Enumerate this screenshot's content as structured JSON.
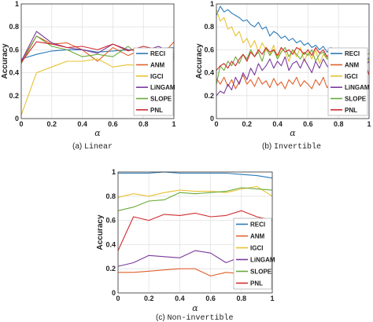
{
  "colors": {
    "RECI": "#2a7ab8",
    "ANM": "#e0602a",
    "IGCI": "#e8c232",
    "LiNGAM": "#7a3a9c",
    "SLOPE": "#6aaa3a",
    "PNL": "#d02a30"
  },
  "chart_data": [
    {
      "type": "line",
      "caption_prefix": "(a) ",
      "caption_mono": "Linear",
      "xlabel": "α",
      "ylabel": "Accuracy",
      "xlim": [
        0,
        1
      ],
      "ylim": [
        0,
        1
      ],
      "xticks": [
        "0",
        "0.2",
        "0.4",
        "0.6",
        "0.8",
        "1"
      ],
      "yticks": [
        "0",
        "0.2",
        "0.4",
        "0.6",
        "0.8",
        "1"
      ],
      "grid": true,
      "legend": "right",
      "x": [
        0,
        0.1,
        0.2,
        0.3,
        0.4,
        0.5,
        0.6,
        0.7,
        0.8,
        0.9,
        1.0
      ],
      "series": [
        {
          "name": "RECI",
          "values": [
            0.52,
            0.56,
            0.59,
            0.6,
            0.6,
            0.58,
            0.59,
            0.6,
            0.6,
            0.61,
            0.62
          ]
        },
        {
          "name": "ANM",
          "values": [
            0.5,
            0.72,
            0.65,
            0.66,
            0.6,
            0.5,
            0.62,
            0.55,
            0.61,
            0.52,
            0.67
          ]
        },
        {
          "name": "IGCI",
          "values": [
            0.03,
            0.4,
            0.45,
            0.5,
            0.5,
            0.52,
            0.45,
            0.47,
            0.46,
            0.5,
            0.62
          ]
        },
        {
          "name": "LiNGAM",
          "values": [
            0.5,
            0.76,
            0.66,
            0.62,
            0.6,
            0.57,
            0.65,
            0.6,
            0.59,
            0.63,
            0.56
          ]
        },
        {
          "name": "SLOPE",
          "values": [
            0.48,
            0.72,
            0.63,
            0.6,
            0.54,
            0.56,
            0.54,
            0.63,
            0.52,
            0.6,
            0.52
          ]
        },
        {
          "name": "PNL",
          "values": [
            0.49,
            0.67,
            0.65,
            0.62,
            0.63,
            0.6,
            0.65,
            0.59,
            0.63,
            0.6,
            0.54
          ]
        }
      ]
    },
    {
      "type": "line",
      "caption_prefix": "(b) ",
      "caption_mono": "Invertible",
      "xlabel": "α",
      "ylabel": "Accuracy",
      "xlim": [
        0,
        1
      ],
      "ylim": [
        0,
        1
      ],
      "xticks": [
        "0",
        "0.2",
        "0.4",
        "0.6",
        "0.8",
        "1"
      ],
      "yticks": [
        "0",
        "0.2",
        "0.4",
        "0.6",
        "0.8",
        "1"
      ],
      "grid": true,
      "legend": "right",
      "x": [
        0,
        0.025,
        0.05,
        0.075,
        0.1,
        0.125,
        0.15,
        0.175,
        0.2,
        0.225,
        0.25,
        0.275,
        0.3,
        0.325,
        0.35,
        0.375,
        0.4,
        0.425,
        0.45,
        0.475,
        0.5,
        0.525,
        0.55,
        0.575,
        0.6,
        0.625,
        0.65,
        0.675,
        0.7,
        0.725,
        0.75,
        0.775,
        0.8,
        0.825,
        0.85,
        0.875,
        0.9,
        0.925,
        0.95,
        0.975,
        1.0
      ],
      "series": [
        {
          "name": "RECI",
          "values": [
            0.9,
            0.98,
            0.93,
            0.95,
            0.92,
            0.9,
            0.88,
            0.85,
            0.86,
            0.82,
            0.8,
            0.84,
            0.78,
            0.8,
            0.72,
            0.76,
            0.74,
            0.7,
            0.72,
            0.68,
            0.7,
            0.66,
            0.68,
            0.64,
            0.66,
            0.62,
            0.64,
            0.6,
            0.63,
            0.58,
            0.62,
            0.56,
            0.6,
            0.55,
            0.58,
            0.54,
            0.57,
            0.52,
            0.55,
            0.5,
            0.53
          ]
        },
        {
          "name": "ANM",
          "values": [
            0.35,
            0.3,
            0.36,
            0.28,
            0.34,
            0.26,
            0.32,
            0.38,
            0.3,
            0.34,
            0.28,
            0.36,
            0.3,
            0.33,
            0.27,
            0.35,
            0.29,
            0.32,
            0.26,
            0.34,
            0.3,
            0.36,
            0.28,
            0.33,
            0.3,
            0.26,
            0.34,
            0.29,
            0.36,
            0.27,
            0.31,
            0.33,
            0.28,
            0.35,
            0.3,
            0.26,
            0.33,
            0.29,
            0.35,
            0.31,
            0.28
          ]
        },
        {
          "name": "IGCI",
          "values": [
            0.95,
            0.85,
            0.88,
            0.78,
            0.8,
            0.72,
            0.76,
            0.66,
            0.7,
            0.62,
            0.68,
            0.58,
            0.66,
            0.6,
            0.56,
            0.64,
            0.52,
            0.62,
            0.58,
            0.5,
            0.6,
            0.54,
            0.62,
            0.5,
            0.58,
            0.52,
            0.6,
            0.48,
            0.56,
            0.52,
            0.58,
            0.46,
            0.54,
            0.5,
            0.56,
            0.46,
            0.52,
            0.5,
            0.54,
            0.47,
            0.52
          ]
        },
        {
          "name": "LiNGAM",
          "values": [
            0.2,
            0.24,
            0.22,
            0.3,
            0.25,
            0.36,
            0.3,
            0.4,
            0.34,
            0.44,
            0.38,
            0.48,
            0.42,
            0.46,
            0.52,
            0.44,
            0.5,
            0.46,
            0.54,
            0.42,
            0.48,
            0.5,
            0.44,
            0.52,
            0.46,
            0.4,
            0.5,
            0.44,
            0.52,
            0.46,
            0.42,
            0.5,
            0.44,
            0.48,
            0.4,
            0.5,
            0.46,
            0.43,
            0.52,
            0.46,
            0.5
          ]
        },
        {
          "name": "SLOPE",
          "values": [
            0.3,
            0.46,
            0.42,
            0.5,
            0.46,
            0.54,
            0.48,
            0.56,
            0.52,
            0.6,
            0.54,
            0.58,
            0.5,
            0.62,
            0.55,
            0.6,
            0.52,
            0.58,
            0.62,
            0.54,
            0.6,
            0.56,
            0.52,
            0.58,
            0.55,
            0.6,
            0.5,
            0.56,
            0.58,
            0.52,
            0.56,
            0.5,
            0.58,
            0.54,
            0.5,
            0.56,
            0.52,
            0.58,
            0.5,
            0.55,
            0.57
          ]
        },
        {
          "name": "PNL",
          "values": [
            0.42,
            0.46,
            0.48,
            0.44,
            0.5,
            0.46,
            0.52,
            0.56,
            0.5,
            0.58,
            0.54,
            0.6,
            0.56,
            0.62,
            0.58,
            0.6,
            0.55,
            0.62,
            0.58,
            0.6,
            0.56,
            0.62,
            0.6,
            0.56,
            0.6,
            0.55,
            0.62,
            0.57,
            0.6,
            0.54,
            0.58,
            0.56,
            0.52,
            0.58,
            0.55,
            0.5,
            0.56,
            0.52,
            0.55,
            0.48,
            0.38
          ]
        }
      ]
    },
    {
      "type": "line",
      "caption_prefix": "(c) ",
      "caption_mono": "Non-invertible",
      "xlabel": "α",
      "ylabel": "Accuracy",
      "xlim": [
        0,
        1
      ],
      "ylim": [
        0,
        1
      ],
      "xticks": [
        "0",
        "0.2",
        "0.4",
        "0.6",
        "0.8",
        "1"
      ],
      "yticks": [
        "0",
        "0.2",
        "0.4",
        "0.6",
        "0.8",
        "1"
      ],
      "grid": true,
      "legend": "bottom-right",
      "x": [
        0,
        0.1,
        0.2,
        0.3,
        0.4,
        0.5,
        0.6,
        0.7,
        0.8,
        0.9,
        1.0
      ],
      "series": [
        {
          "name": "RECI",
          "values": [
            0.99,
            0.99,
            0.99,
            1.0,
            0.99,
            0.99,
            0.99,
            0.99,
            0.98,
            0.97,
            0.95
          ]
        },
        {
          "name": "ANM",
          "values": [
            0.17,
            0.17,
            0.18,
            0.19,
            0.2,
            0.2,
            0.14,
            0.17,
            0.16,
            0.19,
            0.22
          ]
        },
        {
          "name": "IGCI",
          "values": [
            0.79,
            0.82,
            0.8,
            0.83,
            0.85,
            0.84,
            0.84,
            0.83,
            0.86,
            0.88,
            0.8
          ]
        },
        {
          "name": "LiNGAM",
          "values": [
            0.22,
            0.25,
            0.31,
            0.3,
            0.29,
            0.35,
            0.33,
            0.25,
            0.3,
            0.34,
            0.26
          ]
        },
        {
          "name": "SLOPE",
          "values": [
            0.68,
            0.71,
            0.76,
            0.77,
            0.83,
            0.82,
            0.83,
            0.84,
            0.87,
            0.86,
            0.85
          ]
        },
        {
          "name": "PNL",
          "values": [
            0.35,
            0.63,
            0.6,
            0.65,
            0.64,
            0.66,
            0.63,
            0.64,
            0.68,
            0.63,
            0.6
          ]
        }
      ]
    }
  ]
}
